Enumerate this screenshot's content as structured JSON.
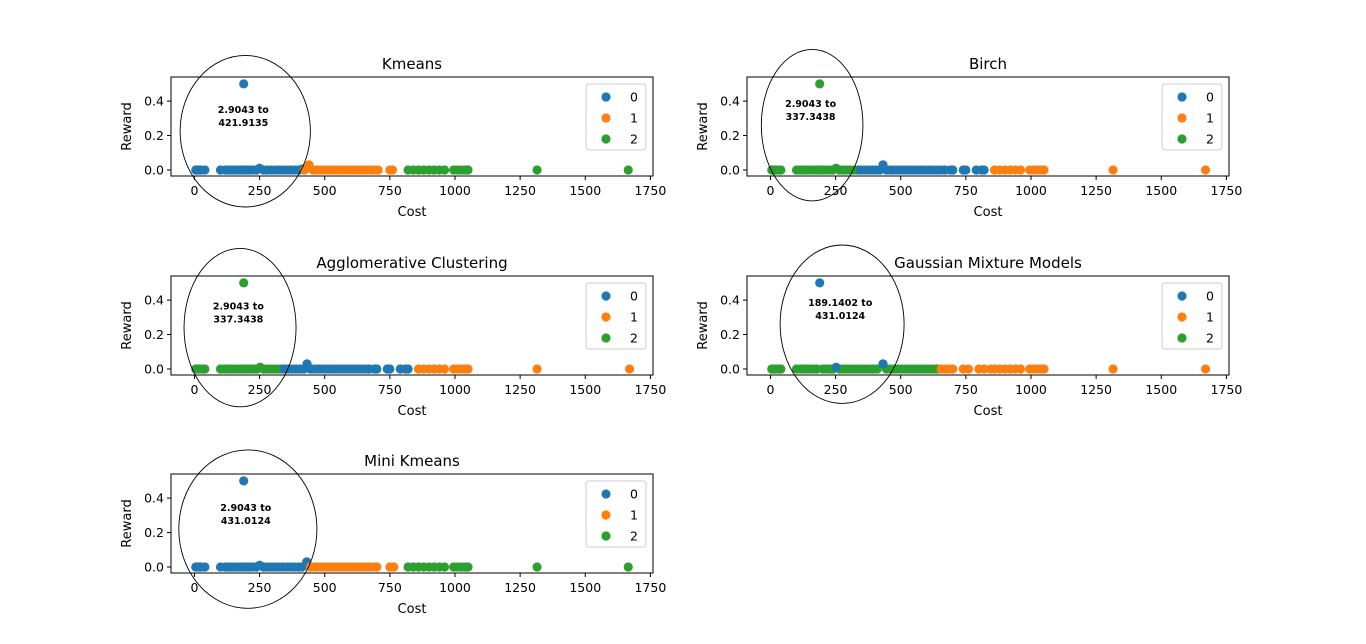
{
  "colors": {
    "0": "#1f77b4",
    "1": "#ff7f0e",
    "2": "#2ca02c"
  },
  "chart_data": [
    {
      "type": "scatter",
      "title": "Kmeans",
      "xlabel": "Cost",
      "ylabel": "Reward",
      "xlim": [
        -90,
        1760
      ],
      "ylim": [
        -0.035,
        0.54
      ],
      "xticks": [
        0,
        250,
        500,
        750,
        1000,
        1250,
        1500,
        1750
      ],
      "yticks": [
        0.0,
        0.2,
        0.4
      ],
      "legend": {
        "placement": "top-right",
        "entries": [
          "0",
          "1",
          "2"
        ]
      },
      "annotation": {
        "lines": [
          "2.9043 to",
          "421.9135"
        ],
        "cx": 195,
        "cy": 0.225,
        "rx": 250,
        "ry": 0.44
      },
      "series": [
        {
          "name": "0",
          "color_key": "0",
          "x": [
            5,
            10,
            18,
            25,
            40,
            100,
            118,
            130,
            142,
            155,
            168,
            178,
            190,
            200,
            212,
            225,
            238,
            250,
            265,
            280,
            295,
            310,
            325,
            340,
            355,
            370,
            385,
            400,
            413
          ],
          "y": [
            0,
            0,
            0,
            0,
            0,
            0,
            0,
            0,
            0,
            0,
            0,
            0,
            0,
            0,
            0,
            0,
            0,
            0.01,
            0,
            0,
            0,
            0,
            0,
            0,
            0,
            0,
            0,
            0,
            0.005
          ]
        },
        {
          "name": "0",
          "color_key": "0",
          "x": [
            189
          ],
          "y": [
            0.5
          ]
        },
        {
          "name": "1",
          "color_key": "1",
          "x": [
            422,
            430,
            440,
            455,
            470,
            485,
            500,
            515,
            530,
            545,
            560,
            575,
            590,
            605,
            620,
            635,
            650,
            665,
            680,
            695,
            705,
            750,
            760
          ],
          "y": [
            0,
            0.01,
            0.03,
            0,
            0,
            0,
            0,
            0,
            0,
            0,
            0,
            0,
            0,
            0,
            0,
            0,
            0,
            0,
            0,
            0,
            0,
            0,
            0
          ]
        },
        {
          "name": "2",
          "color_key": "2",
          "x": [
            820,
            840,
            860,
            880,
            900,
            920,
            940,
            960,
            995,
            1010,
            1025,
            1040,
            1050,
            1315,
            1665
          ],
          "y": [
            0,
            0,
            0,
            0,
            0,
            0,
            0,
            0,
            0,
            0,
            0,
            0,
            0,
            0,
            0
          ]
        }
      ]
    },
    {
      "type": "scatter",
      "title": "Birch",
      "xlabel": "Cost",
      "ylabel": "Reward",
      "xlim": [
        -90,
        1760
      ],
      "ylim": [
        -0.035,
        0.54
      ],
      "xticks": [
        0,
        250,
        500,
        750,
        1000,
        1250,
        1500,
        1750
      ],
      "yticks": [
        0.0,
        0.2,
        0.4
      ],
      "legend": {
        "placement": "top-right",
        "entries": [
          "0",
          "1",
          "2"
        ]
      },
      "annotation": {
        "lines": [
          "2.9043 to",
          "337.3438"
        ],
        "cx": 160,
        "cy": 0.26,
        "rx": 195,
        "ry": 0.44
      },
      "series": [
        {
          "name": "2",
          "color_key": "2",
          "x": [
            5,
            12,
            20,
            30,
            40,
            100,
            115,
            128,
            140,
            152,
            165,
            178,
            190,
            202,
            215,
            228,
            240,
            252,
            265,
            278,
            290,
            305,
            320,
            335
          ],
          "y": [
            0,
            0,
            0,
            0,
            0,
            0,
            0,
            0,
            0,
            0,
            0,
            0,
            0,
            0,
            0,
            0,
            0,
            0.01,
            0,
            0,
            0,
            0,
            0,
            0
          ]
        },
        {
          "name": "2",
          "color_key": "2",
          "x": [
            189
          ],
          "y": [
            0.5
          ]
        },
        {
          "name": "0",
          "color_key": "0",
          "x": [
            345,
            360,
            375,
            390,
            405,
            420,
            432,
            445,
            460,
            475,
            490,
            505,
            520,
            535,
            550,
            565,
            580,
            595,
            610,
            625,
            640,
            655,
            670,
            690,
            700,
            740,
            750,
            790,
            810,
            820
          ],
          "y": [
            0,
            0,
            0,
            0,
            0,
            0,
            0.03,
            0,
            0,
            0,
            0,
            0,
            0,
            0,
            0,
            0,
            0,
            0,
            0,
            0,
            0,
            0,
            0,
            0,
            0,
            0,
            0,
            0,
            0,
            0
          ]
        },
        {
          "name": "1",
          "color_key": "1",
          "x": [
            860,
            880,
            900,
            920,
            940,
            960,
            995,
            1010,
            1025,
            1040,
            1050,
            1315,
            1670
          ],
          "y": [
            0,
            0,
            0,
            0,
            0,
            0,
            0,
            0,
            0,
            0,
            0,
            0,
            0
          ]
        }
      ]
    },
    {
      "type": "scatter",
      "title": "Agglomerative Clustering",
      "xlabel": "Cost",
      "ylabel": "Reward",
      "xlim": [
        -90,
        1760
      ],
      "ylim": [
        -0.035,
        0.54
      ],
      "xticks": [
        0,
        250,
        500,
        750,
        1000,
        1250,
        1500,
        1750
      ],
      "yticks": [
        0.0,
        0.2,
        0.4
      ],
      "legend": {
        "placement": "top-right",
        "entries": [
          "0",
          "1",
          "2"
        ]
      },
      "annotation": {
        "lines": [
          "2.9043 to",
          "337.3438"
        ],
        "cx": 175,
        "cy": 0.24,
        "rx": 215,
        "ry": 0.46
      },
      "series": [
        {
          "name": "2",
          "color_key": "2",
          "x": [
            5,
            12,
            20,
            30,
            40,
            100,
            115,
            128,
            140,
            152,
            165,
            178,
            190,
            202,
            215,
            228,
            240,
            252,
            265,
            278,
            290,
            305,
            320,
            335
          ],
          "y": [
            0,
            0,
            0,
            0,
            0,
            0,
            0,
            0,
            0,
            0,
            0,
            0,
            0,
            0,
            0,
            0,
            0,
            0.01,
            0,
            0,
            0,
            0,
            0,
            0
          ]
        },
        {
          "name": "2",
          "color_key": "2",
          "x": [
            189
          ],
          "y": [
            0.5
          ]
        },
        {
          "name": "0",
          "color_key": "0",
          "x": [
            345,
            360,
            375,
            390,
            405,
            420,
            432,
            445,
            460,
            475,
            490,
            505,
            520,
            535,
            550,
            565,
            580,
            595,
            610,
            625,
            640,
            655,
            670,
            690,
            700,
            740,
            750,
            790,
            810,
            820
          ],
          "y": [
            0,
            0,
            0,
            0,
            0,
            0,
            0.03,
            0,
            0,
            0,
            0,
            0,
            0,
            0,
            0,
            0,
            0,
            0,
            0,
            0,
            0,
            0,
            0,
            0,
            0,
            0,
            0,
            0,
            0,
            0
          ]
        },
        {
          "name": "1",
          "color_key": "1",
          "x": [
            860,
            880,
            900,
            920,
            940,
            960,
            995,
            1010,
            1025,
            1040,
            1050,
            1315,
            1670
          ],
          "y": [
            0,
            0,
            0,
            0,
            0,
            0,
            0,
            0,
            0,
            0,
            0,
            0,
            0
          ]
        }
      ]
    },
    {
      "type": "scatter",
      "title": "Gaussian Mixture Models",
      "xlabel": "Cost",
      "ylabel": "Reward",
      "xlim": [
        -90,
        1760
      ],
      "ylim": [
        -0.035,
        0.54
      ],
      "xticks": [
        0,
        250,
        500,
        750,
        1000,
        1250,
        1500,
        1750
      ],
      "yticks": [
        0.0,
        0.2,
        0.4
      ],
      "legend": {
        "placement": "top-right",
        "entries": [
          "0",
          "1",
          "2"
        ]
      },
      "annotation": {
        "lines": [
          "189.1402 to",
          "431.0124"
        ],
        "cx": 275,
        "cy": 0.26,
        "rx": 238,
        "ry": 0.46
      },
      "series": [
        {
          "name": "2",
          "color_key": "2",
          "x": [
            5,
            12,
            20,
            30,
            40,
            100,
            115,
            128,
            140,
            152,
            165,
            178,
            200,
            215,
            228,
            240,
            265,
            278,
            290,
            305,
            320,
            335,
            350,
            365,
            380,
            395,
            410,
            445,
            460,
            475,
            490,
            505,
            520,
            535,
            550,
            565,
            580,
            595,
            610,
            625,
            640
          ],
          "y": [
            0,
            0,
            0,
            0,
            0,
            0,
            0,
            0,
            0,
            0,
            0,
            0,
            0,
            0,
            0,
            0,
            0,
            0,
            0,
            0,
            0,
            0,
            0,
            0,
            0,
            0,
            0,
            0,
            0,
            0,
            0,
            0,
            0,
            0,
            0,
            0,
            0,
            0,
            0,
            0,
            0
          ]
        },
        {
          "name": "0",
          "color_key": "0",
          "x": [
            189
          ],
          "y": [
            0.5
          ]
        },
        {
          "name": "0",
          "color_key": "0",
          "x": [
            252,
            432
          ],
          "y": [
            0.01,
            0.03
          ]
        },
        {
          "name": "1",
          "color_key": "1",
          "x": [
            655,
            670,
            685,
            700,
            740,
            760,
            800,
            820,
            845,
            860,
            880,
            900,
            920,
            940,
            960,
            995,
            1010,
            1025,
            1040,
            1050,
            1315,
            1670
          ],
          "y": [
            0,
            0,
            0,
            0,
            0,
            0,
            0,
            0,
            0,
            0,
            0,
            0,
            0,
            0,
            0,
            0,
            0,
            0,
            0,
            0,
            0,
            0
          ]
        }
      ]
    },
    {
      "type": "scatter",
      "title": "Mini Kmeans",
      "xlabel": "Cost",
      "ylabel": "Reward",
      "xlim": [
        -90,
        1760
      ],
      "ylim": [
        -0.035,
        0.54
      ],
      "xticks": [
        0,
        250,
        500,
        750,
        1000,
        1250,
        1500,
        1750
      ],
      "yticks": [
        0.0,
        0.2,
        0.4
      ],
      "legend": {
        "placement": "top-right",
        "entries": [
          "0",
          "1",
          "2"
        ]
      },
      "annotation": {
        "lines": [
          "2.9043 to",
          "431.0124"
        ],
        "cx": 205,
        "cy": 0.22,
        "rx": 265,
        "ry": 0.46
      },
      "series": [
        {
          "name": "0",
          "color_key": "0",
          "x": [
            5,
            10,
            18,
            25,
            40,
            100,
            118,
            130,
            142,
            155,
            168,
            178,
            190,
            200,
            212,
            225,
            238,
            250,
            265,
            280,
            295,
            310,
            325,
            340,
            355,
            370,
            385,
            400,
            413,
            431
          ],
          "y": [
            0,
            0,
            0,
            0,
            0,
            0,
            0,
            0,
            0,
            0,
            0,
            0,
            0,
            0,
            0,
            0,
            0,
            0.01,
            0,
            0,
            0,
            0,
            0,
            0,
            0,
            0,
            0,
            0,
            0,
            0.03
          ]
        },
        {
          "name": "0",
          "color_key": "0",
          "x": [
            189
          ],
          "y": [
            0.5
          ]
        },
        {
          "name": "1",
          "color_key": "1",
          "x": [
            445,
            460,
            475,
            490,
            505,
            520,
            535,
            550,
            565,
            580,
            595,
            610,
            625,
            640,
            655,
            670,
            685,
            700,
            750,
            765
          ],
          "y": [
            0,
            0,
            0,
            0,
            0,
            0,
            0,
            0,
            0,
            0,
            0,
            0,
            0,
            0,
            0,
            0,
            0,
            0,
            0,
            0
          ]
        },
        {
          "name": "2",
          "color_key": "2",
          "x": [
            820,
            840,
            860,
            880,
            900,
            920,
            940,
            960,
            995,
            1010,
            1025,
            1040,
            1050,
            1315,
            1665
          ],
          "y": [
            0,
            0,
            0,
            0,
            0,
            0,
            0,
            0,
            0,
            0,
            0,
            0,
            0,
            0,
            0
          ]
        }
      ]
    }
  ]
}
